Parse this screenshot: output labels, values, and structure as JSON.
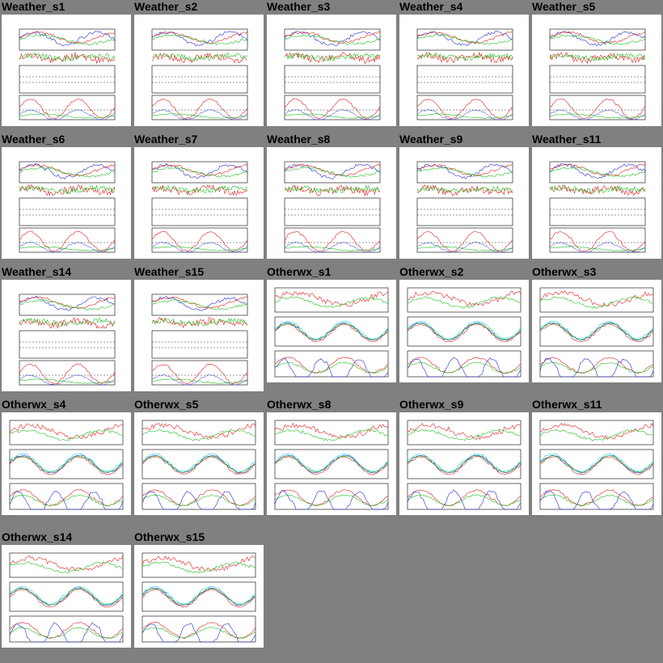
{
  "colors": {
    "background": "#808080",
    "panel": "#ffffff",
    "red": "#e02020",
    "green": "#20c020",
    "blue": "#2030d0",
    "cyan": "#20c8e8",
    "magenta": "#e020e0",
    "black": "#000000"
  },
  "rows": [
    {
      "kind": "weather",
      "items": [
        {
          "id": "Weather_s1",
          "label": "Weather_s1"
        },
        {
          "id": "Weather_s2",
          "label": "Weather_s2"
        },
        {
          "id": "Weather_s3",
          "label": "Weather_s3"
        },
        {
          "id": "Weather_s4",
          "label": "Weather_s4"
        },
        {
          "id": "Weather_s5",
          "label": "Weather_s5"
        }
      ]
    },
    {
      "kind": "weather",
      "items": [
        {
          "id": "Weather_s6",
          "label": "Weather_s6"
        },
        {
          "id": "Weather_s7",
          "label": "Weather_s7"
        },
        {
          "id": "Weather_s8",
          "label": "Weather_s8"
        },
        {
          "id": "Weather_s9",
          "label": "Weather_s9"
        },
        {
          "id": "Weather_s11",
          "label": "Weather_s11"
        }
      ]
    },
    {
      "kind": "mixed",
      "items": [
        {
          "id": "Weather_s14",
          "label": "Weather_s14",
          "type": "weather"
        },
        {
          "id": "Weather_s15",
          "label": "Weather_s15",
          "type": "weather"
        },
        {
          "id": "Otherwx_s1",
          "label": "Otherwx_s1",
          "type": "otherwx"
        },
        {
          "id": "Otherwx_s2",
          "label": "Otherwx_s2",
          "type": "otherwx"
        },
        {
          "id": "Otherwx_s3",
          "label": "Otherwx_s3",
          "type": "otherwx"
        }
      ]
    },
    {
      "kind": "otherwx",
      "items": [
        {
          "id": "Otherwx_s4",
          "label": "Otherwx_s4"
        },
        {
          "id": "Otherwx_s5",
          "label": "Otherwx_s5"
        },
        {
          "id": "Otherwx_s8",
          "label": "Otherwx_s8"
        },
        {
          "id": "Otherwx_s9",
          "label": "Otherwx_s9"
        },
        {
          "id": "Otherwx_s11",
          "label": "Otherwx_s11"
        }
      ]
    },
    {
      "kind": "otherwx",
      "items": [
        {
          "id": "Otherwx_s14",
          "label": "Otherwx_s14"
        },
        {
          "id": "Otherwx_s15",
          "label": "Otherwx_s15"
        }
      ]
    }
  ]
}
